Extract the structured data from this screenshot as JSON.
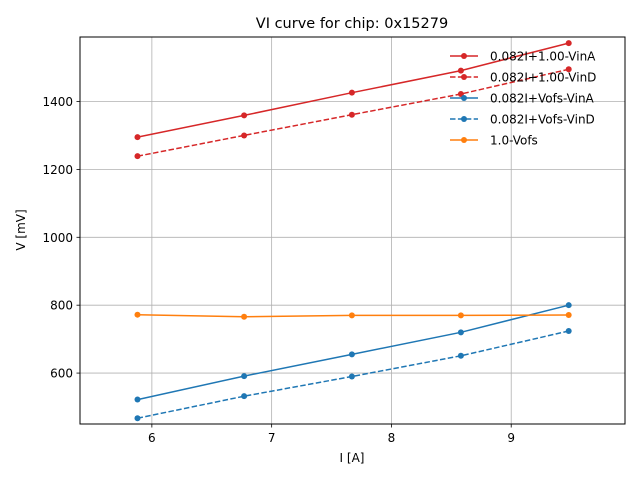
{
  "chart_data": {
    "type": "line",
    "title": "VI curve for chip: 0x15279",
    "xlabel": "I [A]",
    "ylabel": "V [mV]",
    "xlim": [
      5.4,
      9.95
    ],
    "ylim": [
      450,
      1590
    ],
    "xticks": [
      6,
      7,
      8,
      9
    ],
    "yticks": [
      600,
      800,
      1000,
      1200,
      1400
    ],
    "grid": true,
    "legend_position": "top-right",
    "x": [
      5.88,
      6.77,
      7.67,
      8.58,
      9.48
    ],
    "series": [
      {
        "name": "0.082I+1.00-VinA",
        "color": "#d62728",
        "dash": "solid",
        "values": [
          1295,
          1359,
          1426,
          1491,
          1572
        ]
      },
      {
        "name": "0.082I+1.00-VinD",
        "color": "#d62728",
        "dash": "dashed",
        "values": [
          1239,
          1300,
          1361,
          1422,
          1495
        ]
      },
      {
        "name": "0.082I+Vofs-VinA",
        "color": "#1f77b4",
        "dash": "solid",
        "values": [
          522,
          591,
          655,
          720,
          800
        ]
      },
      {
        "name": "0.082I+Vofs-VinD",
        "color": "#1f77b4",
        "dash": "dashed",
        "values": [
          467,
          532,
          590,
          651,
          724
        ]
      },
      {
        "name": "1.0-Vofs",
        "color": "#ff7f0e",
        "dash": "solid",
        "values": [
          772,
          766,
          770,
          770,
          771
        ]
      }
    ]
  }
}
